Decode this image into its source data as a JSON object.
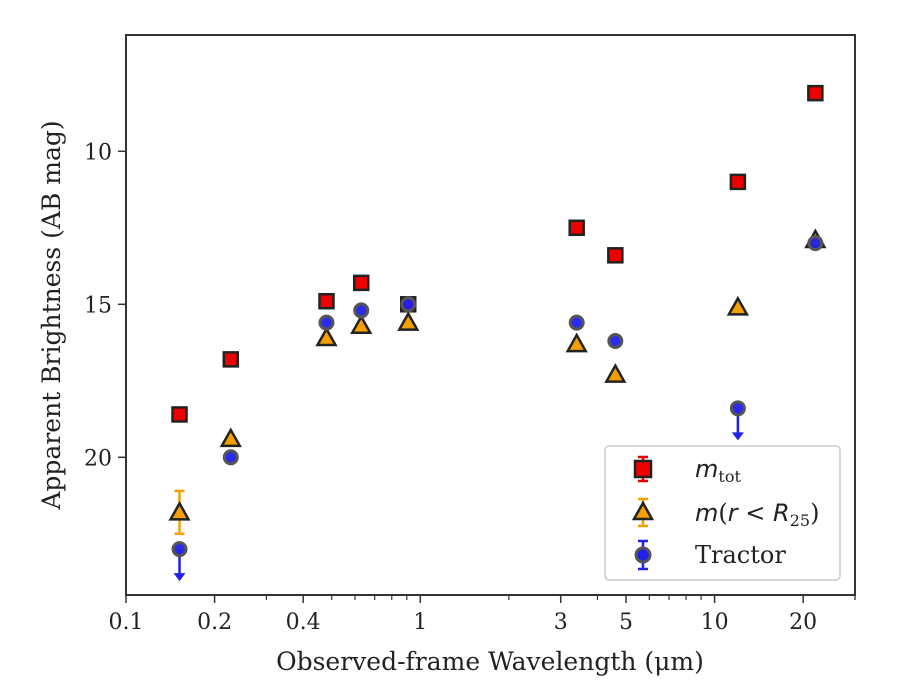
{
  "chart_data": {
    "type": "scatter",
    "xlabel": "Observed-frame Wavelength (μm)",
    "ylabel": "Apparent Brightness (AB mag)",
    "x_scale": "log",
    "xlim": [
      0.1,
      30
    ],
    "ylim": [
      24.5,
      6.2
    ],
    "y_inverted": true,
    "x_ticks": [
      {
        "value": 0.1,
        "label": "0.1"
      },
      {
        "value": 0.2,
        "label": "0.2"
      },
      {
        "value": 0.4,
        "label": "0.4"
      },
      {
        "value": 1,
        "label": "1"
      },
      {
        "value": 3,
        "label": "3"
      },
      {
        "value": 5,
        "label": "5"
      },
      {
        "value": 10,
        "label": "10"
      },
      {
        "value": 20,
        "label": "20"
      }
    ],
    "y_ticks": [
      {
        "value": 10,
        "label": "10"
      },
      {
        "value": 15,
        "label": "15"
      },
      {
        "value": 20,
        "label": "20"
      }
    ],
    "grid": false,
    "legend_position": "bottom-right",
    "series": [
      {
        "name": "m_tot",
        "marker": "square",
        "color": "#ee0000",
        "points": [
          {
            "x": 0.152,
            "y": 18.6
          },
          {
            "x": 0.227,
            "y": 16.8
          },
          {
            "x": 0.48,
            "y": 14.9
          },
          {
            "x": 0.63,
            "y": 14.3
          },
          {
            "x": 0.91,
            "y": 15.0
          },
          {
            "x": 3.4,
            "y": 12.5
          },
          {
            "x": 4.6,
            "y": 13.4
          },
          {
            "x": 12.0,
            "y": 11.0
          },
          {
            "x": 22.0,
            "y": 8.1
          }
        ]
      },
      {
        "name": "m(r < R25)",
        "marker": "triangle",
        "color": "#f5a000",
        "points": [
          {
            "x": 0.152,
            "y": 21.8,
            "yerr": 0.7
          },
          {
            "x": 0.227,
            "y": 19.4
          },
          {
            "x": 0.48,
            "y": 16.1
          },
          {
            "x": 0.63,
            "y": 15.7
          },
          {
            "x": 0.91,
            "y": 15.6
          },
          {
            "x": 3.4,
            "y": 16.3
          },
          {
            "x": 4.6,
            "y": 17.3
          },
          {
            "x": 12.0,
            "y": 15.1
          },
          {
            "x": 22.0,
            "y": 12.9
          }
        ]
      },
      {
        "name": "Tractor",
        "marker": "circle",
        "color": "#2020ee",
        "points": [
          {
            "x": 0.152,
            "y": 23.0,
            "upper_limit": true
          },
          {
            "x": 0.227,
            "y": 20.0
          },
          {
            "x": 0.48,
            "y": 15.6
          },
          {
            "x": 0.63,
            "y": 15.2
          },
          {
            "x": 0.91,
            "y": 15.0
          },
          {
            "x": 3.4,
            "y": 15.6
          },
          {
            "x": 4.6,
            "y": 16.2
          },
          {
            "x": 12.0,
            "y": 18.4,
            "upper_limit": true
          },
          {
            "x": 22.0,
            "y": 13.0
          }
        ]
      }
    ]
  }
}
